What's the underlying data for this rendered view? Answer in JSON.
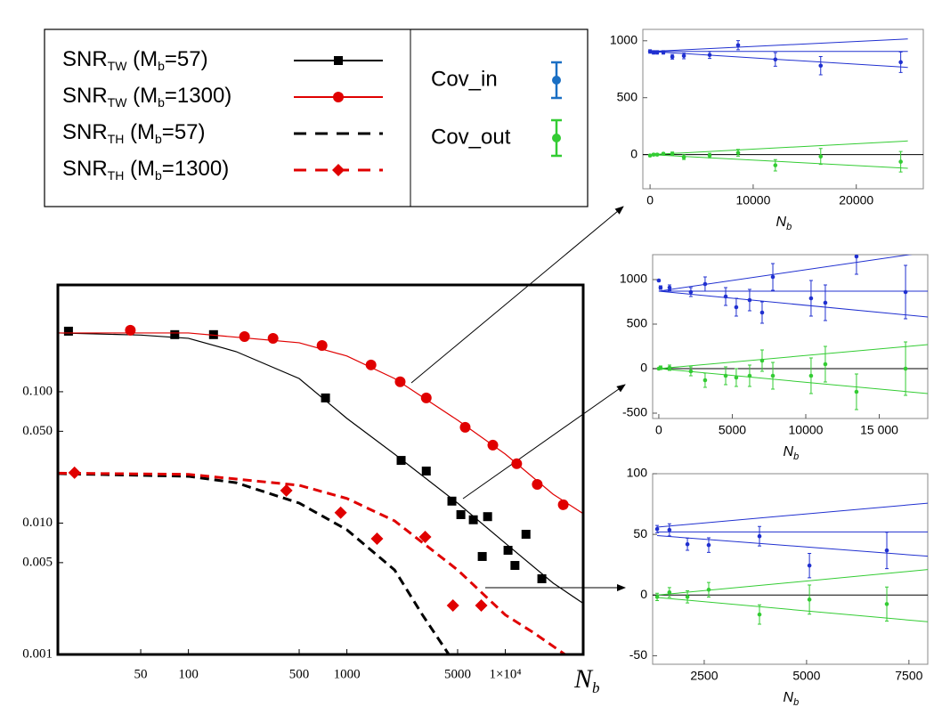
{
  "chart_data": [
    {
      "type": "line",
      "log_x": true,
      "log_y": true,
      "xlim": [
        15,
        31000
      ],
      "ylim": [
        0.001,
        0.65
      ],
      "xticks": [
        50,
        100,
        500,
        1000,
        5000,
        {
          "value": 10000,
          "label": "1×10⁴"
        }
      ],
      "yticks": [
        0.001,
        0.005,
        {
          "value": 0.01,
          "label": "0.010"
        },
        {
          "value": 0.05,
          "label": "0.050"
        },
        {
          "value": 0.1,
          "label": "0.100"
        }
      ],
      "xlabel": [
        "N",
        "b"
      ],
      "series": [
        {
          "name": [
            "SNR",
            "TW",
            " (M",
            "b",
            "=57)"
          ],
          "color": "#000000",
          "marker": "square",
          "line_style": "solid",
          "x": [
            17.5,
            82,
            144,
            733,
            2200,
            3170,
            4600,
            5240,
            6280,
            7730,
            7150,
            10400,
            11500,
            13500,
            17000
          ],
          "values": [
            0.289,
            0.272,
            0.272,
            0.0897,
            0.03,
            0.0249,
            0.0147,
            0.0116,
            0.0106,
            0.0112,
            0.00557,
            0.00621,
            0.00476,
            0.00822,
            0.00377
          ],
          "fit_x": [
            15,
            50,
            100,
            200,
            500,
            1000,
            2000,
            5000,
            10000,
            20000,
            31000
          ],
          "fit_values": [
            0.28,
            0.27,
            0.255,
            0.202,
            0.126,
            0.0627,
            0.0335,
            0.0142,
            0.00703,
            0.0035,
            0.00245
          ]
        },
        {
          "name": [
            "SNR",
            "TW",
            " (M",
            "b",
            "=1300)"
          ],
          "color": "#e00000",
          "marker": "circle",
          "line_style": "solid",
          "x": [
            43,
            226,
            342,
            697,
            1420,
            2170,
            3170,
            5580,
            8340,
            11800,
            15900,
            23200
          ],
          "values": [
            0.294,
            0.263,
            0.255,
            0.225,
            0.16,
            0.119,
            0.0897,
            0.0536,
            0.0392,
            0.0283,
            0.0197,
            0.0138
          ],
          "fit_x": [
            15,
            100,
            500,
            1000,
            2000,
            5000,
            10000,
            20000,
            31000
          ],
          "fit_values": [
            0.28,
            0.28,
            0.236,
            0.187,
            0.126,
            0.0607,
            0.0335,
            0.0166,
            0.0118
          ]
        },
        {
          "name": [
            "SNR",
            "TH",
            " (M",
            "b",
            "=57)"
          ],
          "color": "#000000",
          "marker": "none",
          "line_style": "dashed",
          "fit_x": [
            15,
            100,
            200,
            500,
            1000,
            2000,
            3000,
            4400
          ],
          "fit_values": [
            0.0238,
            0.0227,
            0.0203,
            0.0142,
            0.0089,
            0.0044,
            0.002,
            0.001
          ]
        },
        {
          "name": [
            "SNR",
            "TH",
            " (M",
            "b",
            "=1300)"
          ],
          "color": "#e00000",
          "marker": "diamond",
          "line_style": "dashed",
          "x": [
            19.1,
            415,
            914,
            1550,
            3120,
            4670,
            7050
          ],
          "values": [
            0.0242,
            0.0177,
            0.012,
            0.0076,
            0.00785,
            0.00236,
            0.00236
          ],
          "fit_x": [
            15,
            100,
            500,
            1000,
            2000,
            5000,
            10000,
            15000,
            23800
          ],
          "fit_values": [
            0.024,
            0.0235,
            0.0194,
            0.0154,
            0.0104,
            0.0044,
            0.002,
            0.00147,
            0.001
          ]
        }
      ]
    },
    {
      "type": "errorbar",
      "xlim": [
        -700,
        26500
      ],
      "ylim": [
        -300,
        1100
      ],
      "xticks": [
        0,
        10000,
        20000
      ],
      "yticks": [
        0,
        500,
        1000
      ],
      "xlabel": [
        "N",
        "b"
      ],
      "series": [
        {
          "name": "Cov_in",
          "color": "#2030d0",
          "legend_color": "#1a6fc4",
          "x": [
            0,
            345,
            690,
            1290,
            2160,
            3280,
            5780,
            8540,
            12150,
            16550,
            24310
          ],
          "values": [
            906,
            898,
            898,
            898,
            859,
            867,
            875,
            961,
            836,
            781,
            812
          ],
          "errors": [
            15,
            15,
            15,
            15,
            20,
            25,
            30,
            40,
            60,
            80,
            90
          ]
        },
        {
          "name": "Cov_out",
          "color": "#33cc33",
          "legend_color": "#33cc33",
          "x": [
            0,
            345,
            690,
            1290,
            2160,
            3280,
            5780,
            8540,
            12150,
            16550,
            24310
          ],
          "values": [
            -8,
            0,
            0,
            8,
            8,
            -23,
            -8,
            16,
            -94,
            -16,
            -62
          ],
          "errors": [
            10,
            10,
            10,
            10,
            15,
            20,
            20,
            30,
            50,
            70,
            90
          ]
        }
      ],
      "fit_lines": [
        {
          "color": "#2030d0",
          "x": [
            0,
            25000
          ],
          "values": [
            906,
            906
          ]
        },
        {
          "color": "#2030d0",
          "x": [
            0,
            25000
          ],
          "values": [
            906,
            1016
          ]
        },
        {
          "color": "#2030d0",
          "x": [
            0,
            25000
          ],
          "values": [
            906,
            766
          ]
        },
        {
          "color": "#33cc33",
          "x": [
            0,
            25000
          ],
          "values": [
            0,
            120
          ]
        },
        {
          "color": "#33cc33",
          "x": [
            0,
            25000
          ],
          "values": [
            0,
            -120
          ]
        }
      ]
    },
    {
      "type": "errorbar",
      "xlim": [
        -420,
        18300
      ],
      "ylim": [
        -560,
        1280
      ],
      "xticks": [
        0,
        5000,
        10000,
        {
          "value": 15000,
          "label": "15 000"
        }
      ],
      "yticks": [
        -500,
        0,
        500,
        1000
      ],
      "xlabel": [
        "N",
        "b"
      ],
      "series": [
        {
          "color": "#2030d0",
          "x": [
            0,
            120,
            730,
            2180,
            3150,
            4550,
            5270,
            6180,
            7030,
            7760,
            10360,
            11330,
            13450,
            16790
          ],
          "values": [
            990,
            910,
            910,
            860,
            950,
            810,
            690,
            770,
            630,
            1030,
            790,
            740,
            1260,
            860
          ],
          "errors": [
            10,
            20,
            30,
            50,
            80,
            100,
            100,
            120,
            120,
            150,
            200,
            200,
            200,
            300
          ]
        },
        {
          "color": "#33cc33",
          "x": [
            0,
            120,
            730,
            2180,
            3150,
            4550,
            5270,
            6180,
            7030,
            7760,
            10360,
            11330,
            13450,
            16790
          ],
          "values": [
            0,
            10,
            10,
            -30,
            -130,
            -80,
            -100,
            -80,
            90,
            -80,
            -80,
            50,
            -260,
            0
          ],
          "errors": [
            10,
            20,
            30,
            50,
            80,
            100,
            100,
            120,
            120,
            150,
            200,
            200,
            200,
            300
          ]
        }
      ],
      "fit_lines": [
        {
          "color": "#2030d0",
          "x": [
            0,
            18300
          ],
          "values": [
            870,
            870
          ]
        },
        {
          "color": "#2030d0",
          "x": [
            0,
            18300
          ],
          "values": [
            870,
            1310
          ]
        },
        {
          "color": "#2030d0",
          "x": [
            0,
            18300
          ],
          "values": [
            870,
            580
          ]
        },
        {
          "color": "#33cc33",
          "x": [
            0,
            18300
          ],
          "values": [
            0,
            270
          ]
        },
        {
          "color": "#33cc33",
          "x": [
            0,
            18300
          ],
          "values": [
            0,
            -280
          ]
        }
      ]
    },
    {
      "type": "errorbar",
      "xlim": [
        1240,
        7960
      ],
      "ylim": [
        -57,
        100
      ],
      "xticks": [
        2500,
        5000,
        7500
      ],
      "yticks": [
        -50,
        0,
        50,
        100
      ],
      "xlabel": [
        "N",
        "b"
      ],
      "series": [
        {
          "color": "#2030d0",
          "x": [
            1350,
            1650,
            2090,
            2610,
            3850,
            5070,
            6960
          ],
          "values": [
            54.4,
            53.7,
            41.9,
            41.2,
            48.5,
            24.3,
            36.8
          ],
          "errors": [
            3,
            5,
            5,
            6,
            8,
            10,
            15
          ]
        },
        {
          "color": "#33cc33",
          "x": [
            1350,
            1650,
            2090,
            2610,
            3850,
            5070,
            6960
          ],
          "values": [
            -1.5,
            2.2,
            -1.5,
            4.4,
            -16,
            -3.7,
            -7.4
          ],
          "errors": [
            3,
            4,
            5,
            6,
            8,
            12,
            14
          ]
        }
      ],
      "fit_lines": [
        {
          "color": "#2030d0",
          "x": [
            1350,
            7960
          ],
          "values": [
            52,
            52
          ]
        },
        {
          "color": "#2030d0",
          "x": [
            1350,
            7960
          ],
          "values": [
            56,
            75.7
          ]
        },
        {
          "color": "#2030d0",
          "x": [
            1350,
            7960
          ],
          "values": [
            49,
            32
          ]
        },
        {
          "color": "#33cc33",
          "x": [
            1350,
            7960
          ],
          "values": [
            0,
            21
          ]
        },
        {
          "color": "#33cc33",
          "x": [
            1350,
            7960
          ],
          "values": [
            -2,
            -22
          ]
        }
      ]
    }
  ]
}
